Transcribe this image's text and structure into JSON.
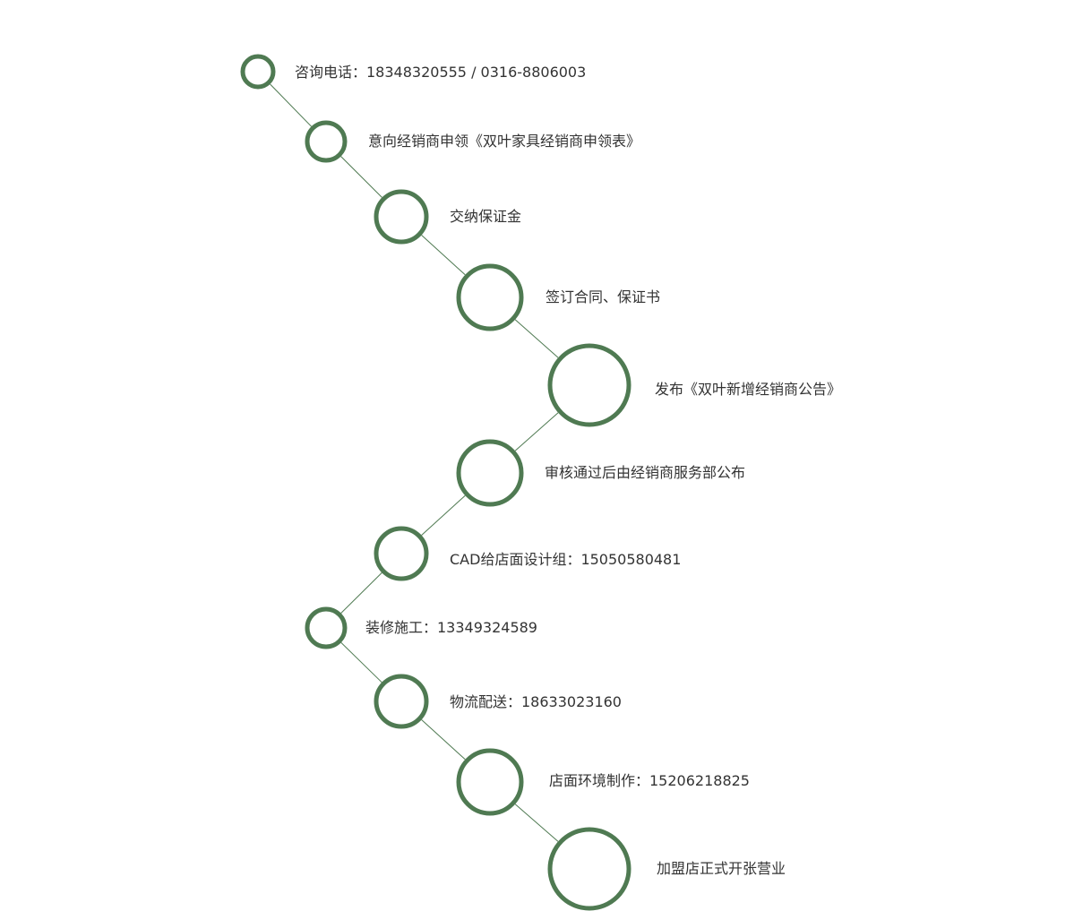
{
  "colors": {
    "node_stroke": "#4f7a52",
    "connector": "#4f7a52",
    "text": "#333333",
    "background": "#ffffff"
  },
  "steps": [
    {
      "label": "咨询电话：18348320555 / 0316-8806003"
    },
    {
      "label": "意向经销商申领《双叶家具经销商申领表》"
    },
    {
      "label": "交纳保证金"
    },
    {
      "label": "签订合同、保证书"
    },
    {
      "label": "发布《双叶新增经销商公告》"
    },
    {
      "label": "审核通过后由经销商服务部公布"
    },
    {
      "label": "CAD给店面设计组：15050580481"
    },
    {
      "label": "装修施工：13349324589"
    },
    {
      "label": "物流配送：18633023160"
    },
    {
      "label": "店面环境制作：15206218825"
    },
    {
      "label": "加盟店正式开张营业"
    }
  ]
}
